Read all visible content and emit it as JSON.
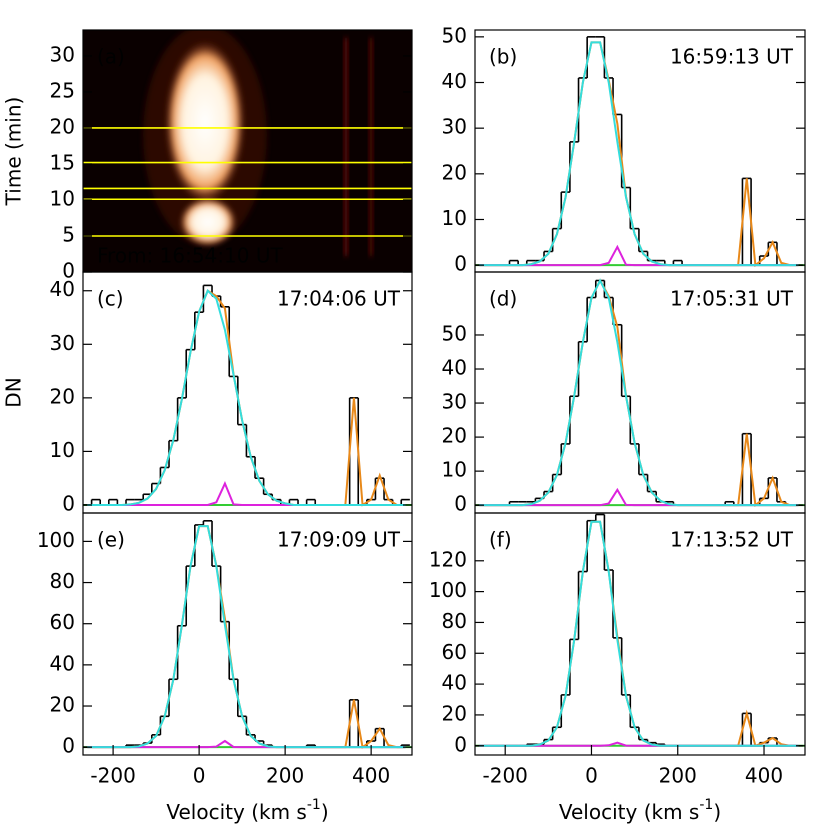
{
  "chart_data": [
    {
      "type": "image",
      "label": "(a)",
      "annotation": "From: 16:54:10 UT",
      "ylabel": "Time (min)",
      "xlim": [
        -270,
        495
      ],
      "ylim": [
        0,
        33.6
      ],
      "yticks": [
        0,
        5,
        10,
        15,
        20,
        25,
        30
      ],
      "hlines": [
        5.0,
        10.1,
        11.6,
        15.2,
        20.0
      ],
      "hline_color": "#ffff00"
    },
    {
      "type": "line",
      "label": "(b)",
      "annotation": "16:59:13 UT",
      "xlim": [
        -270,
        495
      ],
      "ylim": [
        -1.5,
        51.5
      ],
      "yticks": [
        0,
        10,
        20,
        30,
        40,
        50
      ],
      "baseline": 0,
      "baseline_color": "#33cc33",
      "x": [
        -260,
        -240,
        -220,
        -200,
        -180,
        -160,
        -140,
        -120,
        -100,
        -80,
        -60,
        -40,
        -20,
        0,
        20,
        40,
        60,
        80,
        100,
        120,
        140,
        160,
        180,
        200,
        220,
        240,
        260,
        280,
        300,
        320,
        340,
        360,
        380,
        400,
        420,
        440,
        460,
        480
      ],
      "series": [
        {
          "color": "#000000",
          "step": true,
          "values": [
            0,
            0,
            0,
            0,
            1,
            0,
            1,
            1,
            3,
            8,
            16,
            27,
            41,
            50,
            50,
            41,
            33,
            17,
            8,
            3,
            1,
            1,
            0,
            1,
            0,
            0,
            0,
            0,
            0,
            0,
            0,
            19,
            0,
            2,
            5,
            0,
            0,
            0
          ]
        },
        {
          "color": "#e8891a",
          "values": [
            0,
            0,
            0,
            0,
            0,
            0,
            0.2,
            0.8,
            2.5,
            6.8,
            14.9,
            27,
            40,
            48.8,
            48.8,
            40.5,
            31,
            15,
            6.8,
            2.5,
            0.8,
            0.2,
            0,
            0,
            0,
            0,
            0,
            0,
            0,
            0,
            0,
            19,
            0,
            1.5,
            5,
            0.5,
            0,
            0
          ]
        },
        {
          "color": "#dd22dd",
          "values": [
            0,
            0,
            0,
            0,
            0,
            0,
            0,
            0,
            0,
            0,
            0,
            0,
            0,
            0,
            0,
            0.5,
            4,
            0.1,
            0,
            0,
            0,
            0,
            0,
            0,
            0,
            0,
            0,
            0,
            0,
            0,
            0,
            0,
            0,
            0,
            0,
            0,
            0,
            0
          ]
        },
        {
          "color": "#33dddd",
          "values": [
            0,
            0,
            0,
            0,
            0,
            0,
            0.2,
            0.8,
            2.5,
            6.8,
            14.9,
            27,
            40,
            48.8,
            48.8,
            40,
            27,
            14.9,
            6.8,
            2.5,
            0.8,
            0.2,
            0,
            0,
            0,
            0,
            0,
            0,
            0,
            0,
            0,
            0,
            0,
            0,
            0,
            0,
            0,
            0
          ]
        }
      ]
    },
    {
      "type": "line",
      "label": "(c)",
      "annotation": "17:04:06 UT",
      "ylabel": "DN",
      "xlim": [
        -270,
        495
      ],
      "ylim": [
        -1.5,
        43.5
      ],
      "yticks": [
        0,
        10,
        20,
        30,
        40
      ],
      "baseline": 0,
      "baseline_color": "#33cc33",
      "x": [
        -260,
        -240,
        -220,
        -200,
        -180,
        -160,
        -140,
        -120,
        -100,
        -80,
        -60,
        -40,
        -20,
        0,
        20,
        40,
        60,
        80,
        100,
        120,
        140,
        160,
        180,
        200,
        220,
        240,
        260,
        280,
        300,
        320,
        340,
        360,
        380,
        400,
        420,
        440,
        460,
        480
      ],
      "series": [
        {
          "color": "#000000",
          "step": true,
          "values": [
            0,
            1,
            0,
            1,
            0,
            1,
            1,
            2,
            4,
            7,
            12,
            20,
            29,
            36,
            41,
            39,
            37,
            24,
            15,
            9,
            5,
            2,
            1,
            0,
            1,
            0,
            1,
            0,
            0,
            0,
            0,
            20,
            0,
            1,
            5,
            1,
            0,
            1
          ]
        },
        {
          "color": "#e8891a",
          "values": [
            0,
            0,
            0,
            0,
            0,
            0.1,
            0.4,
            1.2,
            3,
            6.5,
            12.1,
            19.8,
            28.6,
            36.1,
            40,
            39,
            36.7,
            24.4,
            15.8,
            9,
            4.5,
            2,
            0.8,
            0.3,
            0,
            0,
            0,
            0,
            0,
            0,
            0,
            20,
            0,
            1,
            5.5,
            1,
            0,
            0
          ]
        },
        {
          "color": "#dd22dd",
          "values": [
            0,
            0,
            0,
            0,
            0,
            0,
            0,
            0,
            0,
            0,
            0,
            0,
            0,
            0,
            0,
            0.5,
            4,
            0.1,
            0,
            0,
            0,
            0,
            0,
            0,
            0,
            0,
            0,
            0,
            0,
            0,
            0,
            0,
            0,
            0,
            0,
            0,
            0,
            0
          ]
        },
        {
          "color": "#33dddd",
          "values": [
            0,
            0,
            0,
            0,
            0,
            0.1,
            0.4,
            1.2,
            3,
            6.5,
            12.1,
            19.8,
            28.6,
            36.1,
            40,
            38.5,
            32.7,
            24.3,
            15.8,
            9,
            4.5,
            2,
            0.8,
            0.3,
            0,
            0,
            0,
            0,
            0,
            0,
            0,
            0,
            0,
            0,
            0,
            0,
            0,
            0
          ]
        }
      ]
    },
    {
      "type": "line",
      "label": "(d)",
      "annotation": "17:05:31 UT",
      "xlim": [
        -270,
        495
      ],
      "ylim": [
        -2.3,
        68.5
      ],
      "yticks": [
        0,
        10,
        20,
        30,
        40,
        50
      ],
      "baseline": 0,
      "baseline_color": "#33cc33",
      "x": [
        -260,
        -240,
        -220,
        -200,
        -180,
        -160,
        -140,
        -120,
        -100,
        -80,
        -60,
        -40,
        -20,
        0,
        20,
        40,
        60,
        80,
        100,
        120,
        140,
        160,
        180,
        200,
        220,
        240,
        260,
        280,
        300,
        320,
        340,
        360,
        380,
        400,
        420,
        440,
        460,
        480
      ],
      "series": [
        {
          "color": "#000000",
          "step": true,
          "values": [
            0,
            0,
            0,
            0,
            1,
            1,
            1,
            2,
            4,
            9,
            18,
            32,
            48,
            61,
            66,
            61,
            53,
            32,
            18,
            9,
            4,
            1,
            1,
            0,
            0,
            0,
            0,
            0,
            0,
            1,
            0,
            21,
            0,
            2,
            8,
            1,
            0,
            0
          ]
        },
        {
          "color": "#e8891a",
          "values": [
            0,
            0,
            0,
            0,
            0,
            0,
            0.3,
            1.3,
            3.7,
            8.9,
            18.3,
            32.1,
            47.9,
            60.9,
            66,
            61.4,
            52.4,
            32.2,
            18.3,
            8.9,
            3.7,
            1.3,
            0.3,
            0,
            0,
            0,
            0,
            0,
            0,
            0,
            0,
            21,
            0,
            2,
            8,
            1,
            0,
            0
          ]
        },
        {
          "color": "#dd22dd",
          "values": [
            0,
            0,
            0,
            0,
            0,
            0,
            0,
            0,
            0,
            0,
            0,
            0,
            0,
            0,
            0,
            0.5,
            4.5,
            0.1,
            0,
            0,
            0,
            0,
            0,
            0,
            0,
            0,
            0,
            0,
            0,
            0,
            0,
            0,
            0,
            0,
            0,
            0,
            0,
            0
          ]
        },
        {
          "color": "#33dddd",
          "values": [
            0,
            0,
            0,
            0,
            0,
            0,
            0.3,
            1.3,
            3.7,
            8.9,
            18.3,
            32.1,
            47.9,
            60.9,
            66,
            60.9,
            47.9,
            32.1,
            18.3,
            8.9,
            3.7,
            1.3,
            0.3,
            0,
            0,
            0,
            0,
            0,
            0,
            0,
            0,
            0,
            0,
            0,
            0,
            0,
            0,
            0
          ]
        }
      ]
    },
    {
      "type": "line",
      "label": "(e)",
      "annotation": "17:09:09 UT",
      "xlabel": [
        "Velocity (km s",
        "-1",
        ")"
      ],
      "xlim": [
        -270,
        495
      ],
      "ylim": [
        -3.8,
        113.8
      ],
      "yticks": [
        0,
        20,
        40,
        60,
        80,
        100
      ],
      "xticks": [
        -200,
        0,
        200,
        400
      ],
      "baseline": 0,
      "baseline_color": "#33cc33",
      "x": [
        -260,
        -240,
        -220,
        -200,
        -180,
        -160,
        -140,
        -120,
        -100,
        -80,
        -60,
        -40,
        -20,
        0,
        20,
        40,
        60,
        80,
        100,
        120,
        140,
        160,
        180,
        200,
        220,
        240,
        260,
        280,
        300,
        320,
        340,
        360,
        380,
        400,
        420,
        440,
        460,
        480
      ],
      "series": [
        {
          "color": "#000000",
          "step": true,
          "values": [
            0,
            0,
            0,
            0,
            0,
            1,
            1,
            2,
            6,
            15,
            33,
            59,
            88,
            108,
            110,
            88,
            61,
            33,
            15,
            6,
            3,
            1,
            0,
            0,
            0,
            0,
            1,
            0,
            0,
            0,
            0,
            23,
            0,
            3,
            9,
            0,
            0,
            1
          ]
        },
        {
          "color": "#e8891a",
          "values": [
            0,
            0,
            0,
            0,
            0,
            0,
            0.4,
            1.8,
            5.5,
            15,
            32.8,
            59.4,
            88,
            107.4,
            107.4,
            88.3,
            62.4,
            32.9,
            15,
            5.5,
            1.8,
            0.4,
            0,
            0,
            0,
            0,
            0,
            0,
            0,
            0,
            0,
            23,
            0,
            3,
            9,
            1,
            0,
            0
          ]
        },
        {
          "color": "#dd22dd",
          "values": [
            0,
            0,
            0,
            0,
            0,
            0,
            0,
            0,
            0,
            0,
            0,
            0,
            0,
            0,
            0,
            0.3,
            3,
            0.1,
            0,
            0,
            0,
            0,
            0,
            0,
            0,
            0,
            0,
            0,
            0,
            0,
            0,
            0,
            0,
            0,
            0,
            0,
            0,
            0
          ]
        },
        {
          "color": "#33dddd",
          "values": [
            0,
            0,
            0,
            0,
            0,
            0,
            0.4,
            1.8,
            5.5,
            15,
            32.8,
            59.4,
            88,
            107.4,
            107.4,
            88,
            59.4,
            32.8,
            15,
            5.5,
            1.8,
            0.4,
            0,
            0,
            0,
            0,
            0,
            0,
            0,
            0,
            0,
            0,
            0,
            0,
            0,
            0,
            0,
            0
          ]
        }
      ]
    },
    {
      "type": "line",
      "label": "(f)",
      "annotation": "17:13:52 UT",
      "xlabel": [
        "Velocity (km s",
        "-1",
        ")"
      ],
      "xlim": [
        -270,
        495
      ],
      "ylim": [
        -6,
        151
      ],
      "yticks": [
        0,
        20,
        40,
        60,
        80,
        100,
        120
      ],
      "xticks": [
        -200,
        0,
        200,
        400
      ],
      "baseline": 0,
      "baseline_color": "#33cc33",
      "x": [
        -260,
        -240,
        -220,
        -200,
        -180,
        -160,
        -140,
        -120,
        -100,
        -80,
        -60,
        -40,
        -20,
        0,
        20,
        40,
        60,
        80,
        100,
        120,
        140,
        160,
        180,
        200,
        220,
        240,
        260,
        280,
        300,
        320,
        340,
        360,
        380,
        400,
        420,
        440,
        460,
        480
      ],
      "series": [
        {
          "color": "#000000",
          "step": true,
          "values": [
            0,
            0,
            0,
            0,
            0,
            0,
            1,
            1,
            4,
            12,
            33,
            69,
            113,
            146,
            150,
            114,
            70,
            33,
            12,
            4,
            2,
            1,
            0,
            0,
            0,
            0,
            0,
            0,
            0,
            0,
            0,
            21,
            0,
            2,
            5,
            0,
            0,
            0
          ]
        },
        {
          "color": "#e8891a",
          "values": [
            0,
            0,
            0,
            0,
            0,
            0,
            0,
            0.8,
            3.4,
            12,
            32.4,
            68.7,
            113,
            145.3,
            145.3,
            113.3,
            70.7,
            32.5,
            12,
            3.4,
            0.8,
            0,
            0,
            0,
            0,
            0,
            0,
            0,
            0,
            0,
            0,
            21,
            0,
            2,
            5,
            1,
            0,
            0
          ]
        },
        {
          "color": "#dd22dd",
          "values": [
            0,
            0,
            0,
            0,
            0,
            0,
            0,
            0,
            0,
            0,
            0,
            0,
            0,
            0,
            0,
            0.3,
            2,
            0.1,
            0,
            0,
            0,
            0,
            0,
            0,
            0,
            0,
            0,
            0,
            0,
            0,
            0,
            0,
            0,
            0,
            0,
            0,
            0,
            0
          ]
        },
        {
          "color": "#33dddd",
          "values": [
            0,
            0,
            0,
            0,
            0,
            0,
            0,
            0.8,
            3.4,
            12,
            32.4,
            68.7,
            113,
            145.3,
            145.3,
            113,
            68.7,
            32.4,
            12,
            3.4,
            0.8,
            0,
            0,
            0,
            0,
            0,
            0,
            0,
            0,
            0,
            0,
            0,
            0,
            0,
            0,
            0,
            0,
            0
          ]
        }
      ]
    }
  ]
}
